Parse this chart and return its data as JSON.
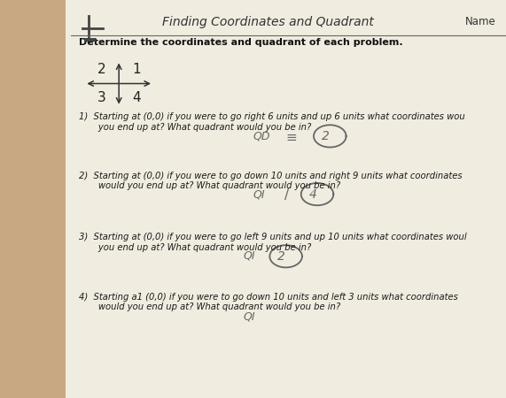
{
  "title": "Finding Coordinates and Quadrant",
  "name_label": "Name",
  "subtitle": "Determine the coordinates and quadrant of each problem.",
  "bg_color": "#c8a882",
  "paper_color": "#f0ece0",
  "title_fontsize": 10,
  "subtitle_fontsize": 8,
  "body_fontsize": 7.2,
  "questions": [
    "1)  Starting at (0,0) if you were to go right 6 units and up 6 units what coordinates wou\n       you end up at? What quadrant would you be in?",
    "2)  Starting at (0,0) if you were to go down 10 units and right 9 units what coordinates\n       would you end up at? What quadrant would you be in?",
    "3)  Starting at (0,0) if you were to go left 9 units and up 10 units what coordinates woul\n       you end up at? What quadrant would you be in?",
    "4)  Starting a1 (0,0) if you were to go down 10 units and left 3 units what coordinates\n       would you end up at? What quadrant would you be in?"
  ]
}
